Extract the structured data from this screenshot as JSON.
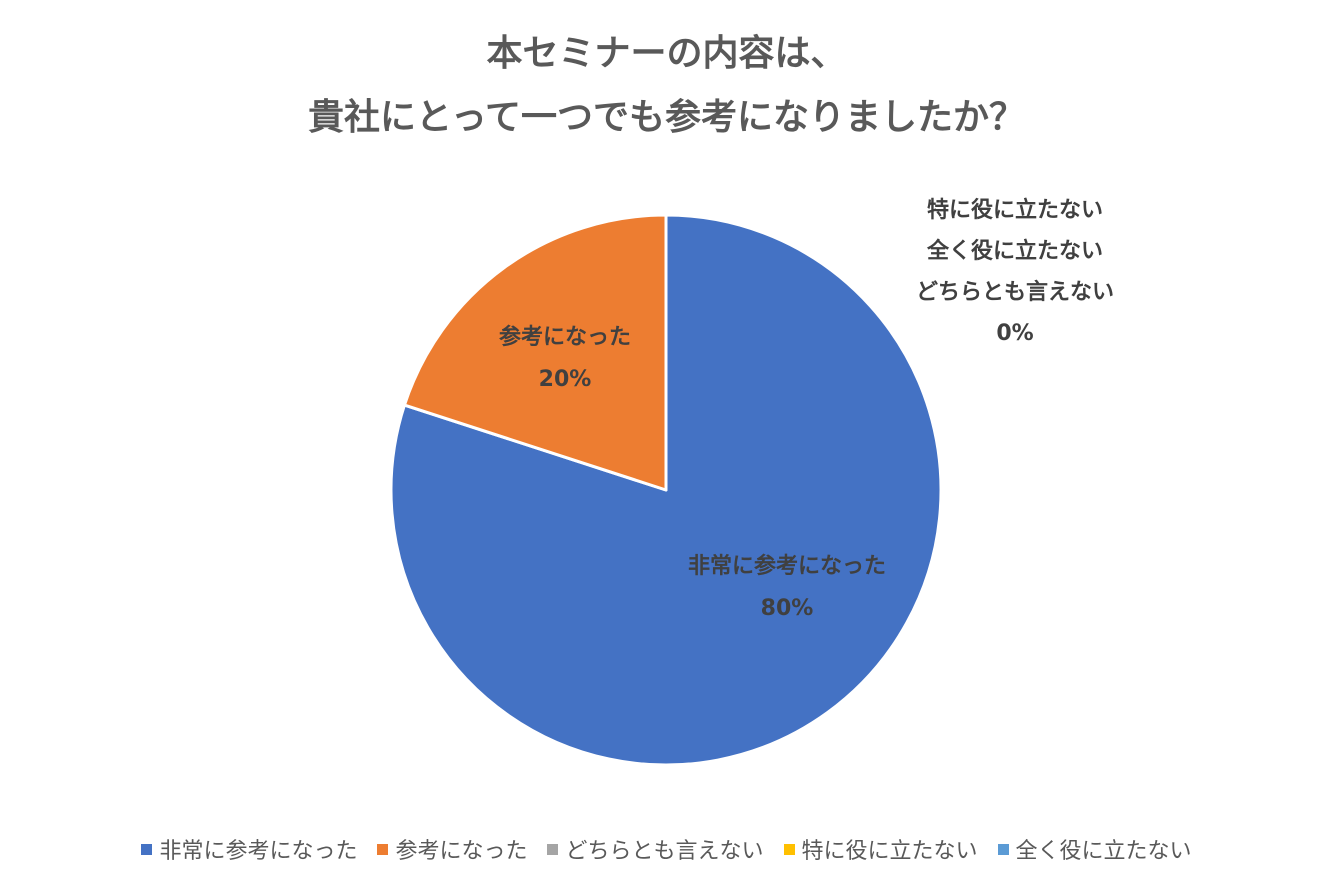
{
  "chart_data": {
    "type": "pie",
    "title": [
      "本セミナーの内容は、",
      "貴社にとって一つでも参考になりましたか？"
    ],
    "categories": [
      "非常に参考になった",
      "参考になった",
      "どちらとも言えない",
      "特に役に立たない",
      "全く役に立たない"
    ],
    "values": [
      80,
      20,
      0,
      0,
      0
    ],
    "colors": [
      "#4472C4",
      "#ED7D31",
      "#A5A5A5",
      "#FFC000",
      "#5B9BD5"
    ],
    "data_labels": {
      "very_helpful": {
        "name": "非常に参考になった",
        "pct": "80%"
      },
      "helpful": {
        "name": "参考になった",
        "pct": "20%"
      },
      "zero_group": {
        "names": [
          "特に役に立たない",
          "全く役に立たない",
          "どちらとも言えない"
        ],
        "pct": "0%"
      }
    },
    "legend_position": "bottom"
  }
}
